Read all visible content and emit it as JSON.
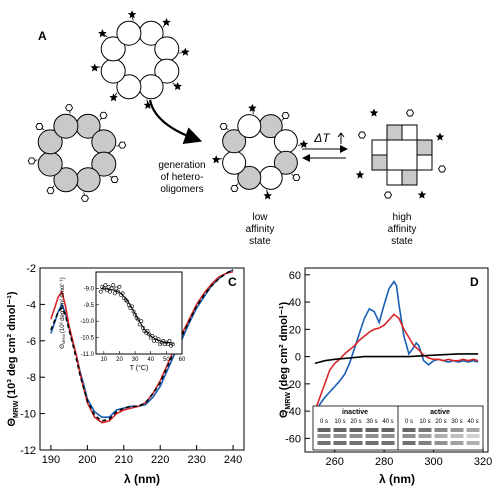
{
  "panel_a": {
    "label": "A",
    "arrow_caption": [
      "generation",
      "of hetero-",
      "oligomers"
    ],
    "delta_t_label": "ΔT",
    "low_state_label": [
      "low",
      "affinity",
      "state"
    ],
    "high_state_label": [
      "high",
      "affinity",
      "state"
    ],
    "colors": {
      "subunit_fill": "#c9c9c9",
      "empty_fill": "#ffffff",
      "stroke": "#000000"
    }
  },
  "panel_c": {
    "label": "C",
    "ylabel_symbol": "Θ",
    "ylabel_sub": "MRW",
    "ylabel_units": "(10³ deg cm² dmol⁻¹)",
    "xlabel": "λ (nm)",
    "inset": {
      "ylabel_symbol": "Θ",
      "ylabel_sub": "MRW",
      "ylabel_units": "(10³ deg cm² dmol⁻¹)",
      "xlabel": "T (°C)"
    }
  },
  "panel_d": {
    "label": "D",
    "ylabel_symbol": "Θ",
    "ylabel_sub": "MRW",
    "ylabel_units": "(deg cm² dmol⁻¹)",
    "xlabel": "λ (nm)",
    "gel": {
      "left_title": "inactive",
      "right_title": "active",
      "lane_labels": [
        "0 s",
        "10 s",
        "20 s",
        "30 s",
        "40 s"
      ]
    }
  },
  "chart_data": [
    {
      "type": "line",
      "panel": "C",
      "xlim": [
        187,
        243
      ],
      "ylim": [
        -12,
        -2
      ],
      "xticks": [
        190,
        200,
        210,
        220,
        230,
        240
      ],
      "yticks": [
        -12,
        -10,
        -8,
        -6,
        -4,
        -2
      ],
      "series": [
        {
          "color": "#1a5fb4",
          "x": [
            190,
            191,
            192,
            193,
            194,
            195,
            196,
            197,
            198,
            199,
            200,
            202,
            204,
            206,
            208,
            210,
            212,
            214,
            216,
            218,
            220,
            222,
            224,
            226,
            228,
            230,
            232,
            234,
            236,
            238,
            240
          ],
          "y": [
            -5.6,
            -5.0,
            -4.4,
            -4.0,
            -4.5,
            -5.3,
            -6.1,
            -6.8,
            -7.7,
            -8.4,
            -9.2,
            -9.9,
            -10.2,
            -10.2,
            -9.8,
            -9.7,
            -9.6,
            -9.6,
            -9.5,
            -9.1,
            -8.5,
            -7.6,
            -6.7,
            -5.9,
            -5.0,
            -4.2,
            -3.6,
            -3.0,
            -2.6,
            -2.3,
            -2.1
          ]
        },
        {
          "color": "#d62728",
          "x": [
            190,
            191,
            192,
            193,
            194,
            195,
            196,
            197,
            198,
            199,
            200,
            202,
            204,
            206,
            208,
            210,
            212,
            214,
            216,
            218,
            220,
            222,
            224,
            226,
            228,
            230,
            232,
            234,
            236,
            238,
            240
          ],
          "y": [
            -4.8,
            -4.2,
            -3.6,
            -3.3,
            -4.1,
            -5.2,
            -6.0,
            -6.8,
            -7.8,
            -8.6,
            -9.4,
            -10.2,
            -10.5,
            -10.4,
            -10.0,
            -9.8,
            -9.7,
            -9.6,
            -9.4,
            -8.9,
            -8.2,
            -7.3,
            -6.4,
            -5.6,
            -4.8,
            -4.0,
            -3.4,
            -2.9,
            -2.5,
            -2.3,
            -2.2
          ]
        },
        {
          "color": "#000000",
          "dash": true,
          "x": [
            190,
            191,
            192,
            193,
            194,
            195,
            196,
            197,
            198,
            199,
            200,
            202,
            204,
            206,
            208,
            210,
            212,
            214,
            216,
            218,
            220,
            222,
            224,
            226,
            228,
            230,
            232,
            234,
            236,
            238,
            240
          ],
          "y": [
            -5.4,
            -4.9,
            -4.4,
            -4.2,
            -4.6,
            -5.4,
            -6.2,
            -7.0,
            -7.9,
            -8.6,
            -9.3,
            -10.1,
            -10.4,
            -10.3,
            -9.9,
            -9.7,
            -9.6,
            -9.6,
            -9.4,
            -8.9,
            -8.3,
            -7.4,
            -6.5,
            -5.7,
            -4.9,
            -4.1,
            -3.5,
            -3.0,
            -2.6,
            -2.3,
            -2.1
          ]
        }
      ],
      "inset": {
        "type": "scatter",
        "xlim": [
          5,
          60
        ],
        "ylim": [
          -11,
          -8.5
        ],
        "xticks": [
          10,
          20,
          30,
          40,
          50,
          60
        ],
        "yticks": [
          -11.0,
          -10.5,
          -10.0,
          -9.5,
          -9.0
        ],
        "points_x": [
          8,
          9,
          10,
          11,
          12,
          13,
          14,
          15,
          16,
          17,
          18,
          19,
          20,
          21,
          22,
          23,
          24,
          25,
          26,
          27,
          28,
          29,
          30,
          31,
          32,
          33,
          34,
          35,
          36,
          37,
          38,
          39,
          40,
          41,
          42,
          43,
          44,
          45,
          46,
          47,
          48,
          49,
          50,
          51,
          52,
          53,
          54
        ],
        "points_y": [
          -9.1,
          -8.95,
          -9.0,
          -8.9,
          -9.05,
          -8.95,
          -9.1,
          -9.0,
          -8.9,
          -9.15,
          -9.0,
          -9.1,
          -8.95,
          -9.2,
          -9.15,
          -9.3,
          -9.35,
          -9.4,
          -9.5,
          -9.6,
          -9.55,
          -9.7,
          -9.8,
          -9.9,
          -9.95,
          -10.1,
          -10.0,
          -10.2,
          -10.3,
          -10.35,
          -10.3,
          -10.4,
          -10.5,
          -10.45,
          -10.6,
          -10.5,
          -10.6,
          -10.55,
          -10.7,
          -10.65,
          -10.6,
          -10.7,
          -10.65,
          -10.7,
          -10.6,
          -10.75,
          -10.7
        ],
        "fit_x": [
          8,
          12,
          16,
          20,
          24,
          28,
          32,
          36,
          40,
          44,
          48,
          52,
          55
        ],
        "fit_y": [
          -9.0,
          -9.02,
          -9.05,
          -9.12,
          -9.3,
          -9.6,
          -9.95,
          -10.25,
          -10.45,
          -10.57,
          -10.63,
          -10.66,
          -10.67
        ]
      }
    },
    {
      "type": "line",
      "panel": "D",
      "xlim": [
        248,
        322
      ],
      "ylim": [
        -70,
        65
      ],
      "xticks": [
        260,
        280,
        300,
        320
      ],
      "yticks": [
        -60,
        -40,
        -20,
        0,
        20,
        40,
        60
      ],
      "series": [
        {
          "color": "#1a5fb4",
          "x": [
            252,
            254,
            256,
            258,
            260,
            262,
            264,
            266,
            268,
            270,
            272,
            274,
            276,
            278,
            280,
            282,
            284,
            285,
            286,
            288,
            290,
            292,
            293,
            294,
            296,
            298,
            300,
            302,
            304,
            306,
            308,
            310,
            312,
            314,
            316,
            318
          ],
          "y": [
            -45,
            -35,
            -30,
            -26,
            -22,
            -18,
            -13,
            -5,
            6,
            17,
            28,
            35,
            33,
            25,
            38,
            50,
            55,
            52,
            38,
            15,
            2,
            7,
            10,
            8,
            -3,
            -6,
            -3,
            -2,
            -3,
            -4,
            -3,
            -4,
            -3,
            -4,
            -3,
            -4
          ]
        },
        {
          "color": "#d62728",
          "x": [
            252,
            254,
            256,
            258,
            260,
            262,
            264,
            266,
            268,
            270,
            272,
            274,
            276,
            278,
            280,
            282,
            284,
            286,
            288,
            290,
            292,
            294,
            296,
            298,
            300,
            302,
            304,
            306,
            308,
            310,
            312,
            314,
            316,
            318
          ],
          "y": [
            -40,
            -30,
            -20,
            -10,
            -5,
            -2,
            2,
            5,
            8,
            12,
            15,
            18,
            20,
            21,
            23,
            27,
            31,
            28,
            20,
            14,
            8,
            5,
            1,
            -1,
            -2,
            -2,
            -3,
            -2,
            -3,
            -3,
            -2,
            -3,
            -2,
            -3
          ]
        },
        {
          "color": "#000000",
          "x": [
            252,
            256,
            260,
            266,
            272,
            280,
            290,
            300,
            310,
            318
          ],
          "y": [
            -5,
            -3,
            -2,
            -1,
            0,
            0,
            0,
            1,
            2,
            2
          ]
        }
      ]
    }
  ]
}
